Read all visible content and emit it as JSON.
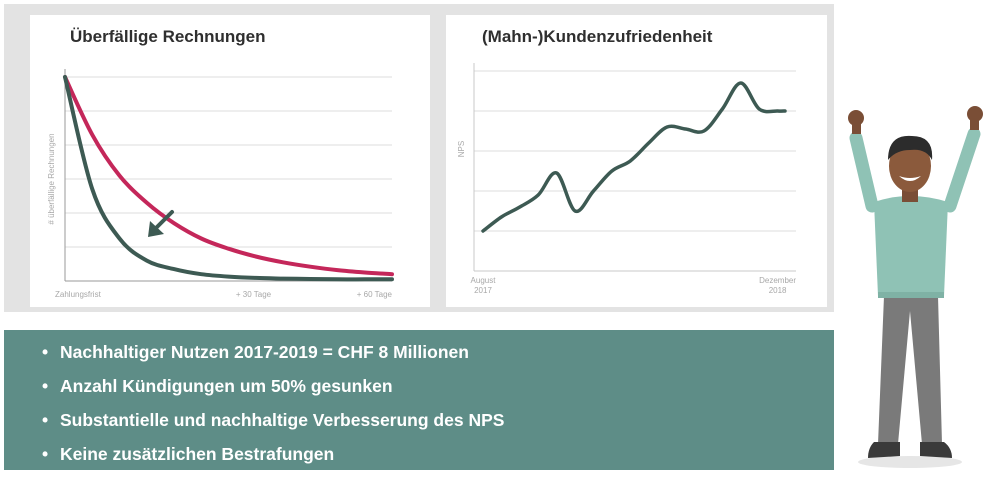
{
  "chart_data": [
    {
      "type": "line",
      "title": "Überfällige Rechnungen",
      "ylabel": "# überfällige Rechnungen",
      "xlabel": "",
      "x_ticks": [
        "Zahlungsfrist",
        "+ 30 Tage",
        "+ 60 Tage"
      ],
      "x": [
        0,
        5,
        10,
        15,
        20,
        25,
        30,
        35,
        40,
        45,
        50,
        55,
        60
      ],
      "ylim": [
        0,
        6
      ],
      "grid": true,
      "series": [
        {
          "color": "#c4275a",
          "values": [
            6.0,
            4.3,
            3.1,
            2.3,
            1.7,
            1.25,
            0.95,
            0.72,
            0.55,
            0.42,
            0.32,
            0.25,
            0.2
          ]
        },
        {
          "color": "#3d5a53",
          "values": [
            6.0,
            2.7,
            1.25,
            0.6,
            0.35,
            0.2,
            0.13,
            0.09,
            0.07,
            0.06,
            0.05,
            0.05,
            0.05
          ]
        }
      ],
      "annotation": "arrow-down-left"
    },
    {
      "type": "line",
      "title": "(Mahn-)Kundenzufriedenheit",
      "ylabel": "NPS",
      "xlabel": "",
      "x_ticks": [
        {
          "label": "August",
          "sub": "2017",
          "x": 0
        },
        {
          "label": "Dezember",
          "sub": "2018",
          "x": 16
        }
      ],
      "x": [
        0,
        1,
        2,
        3,
        4,
        5,
        6,
        7,
        8,
        9,
        10,
        11,
        12,
        13,
        14,
        15,
        16,
        16.4
      ],
      "ylim": [
        0,
        5
      ],
      "grid": true,
      "series": [
        {
          "color": "#3d5a53",
          "values": [
            1.0,
            1.35,
            1.6,
            1.9,
            2.45,
            1.5,
            2.0,
            2.5,
            2.75,
            3.2,
            3.6,
            3.55,
            3.5,
            4.05,
            4.7,
            4.05,
            4.0,
            4.0
          ]
        }
      ]
    }
  ],
  "bullets": [
    "Nachhaltiger Nutzen 2017-2019 = CHF 8 Millionen",
    "Anzahl Kündigungen um 50% gesunken",
    "Substantielle und nachhaltige Verbesserung des NPS",
    "Keine zusätzlichen Bestrafungen"
  ],
  "bullet_glyph": "•",
  "colors": {
    "panel": "#e3e3e3",
    "accent_teal": "#5e8d87",
    "line_red": "#c4275a",
    "line_dark": "#3d5a53"
  }
}
